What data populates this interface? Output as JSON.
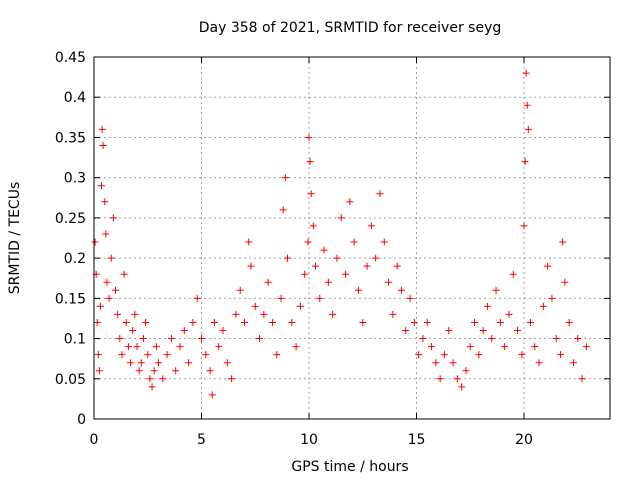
{
  "chart_data": {
    "type": "scatter",
    "title": "Day 358 of 2021, SRMTID for receiver seyg",
    "xlabel": "GPS time / hours",
    "ylabel": "SRMTID / TECUs",
    "xlim": [
      0,
      24
    ],
    "ylim": [
      0,
      0.45
    ],
    "xticks": [
      "0",
      "5",
      "10",
      "15",
      "20"
    ],
    "yticks": [
      "0",
      "0.05",
      "0.1",
      "0.15",
      "0.2",
      "0.25",
      "0.3",
      "0.35",
      "0.4",
      "0.45"
    ],
    "grid": true,
    "marker": "+",
    "color": "#ff0000",
    "series": [
      {
        "name": "SRMTID",
        "points": [
          [
            0.05,
            0.22
          ],
          [
            0.1,
            0.18
          ],
          [
            0.15,
            0.12
          ],
          [
            0.2,
            0.08
          ],
          [
            0.25,
            0.06
          ],
          [
            0.3,
            0.14
          ],
          [
            0.35,
            0.29
          ],
          [
            0.38,
            0.36
          ],
          [
            0.42,
            0.34
          ],
          [
            0.5,
            0.27
          ],
          [
            0.55,
            0.23
          ],
          [
            0.6,
            0.17
          ],
          [
            0.7,
            0.15
          ],
          [
            0.8,
            0.2
          ],
          [
            0.9,
            0.25
          ],
          [
            1.0,
            0.16
          ],
          [
            1.1,
            0.13
          ],
          [
            1.2,
            0.1
          ],
          [
            1.3,
            0.08
          ],
          [
            1.4,
            0.18
          ],
          [
            1.5,
            0.12
          ],
          [
            1.6,
            0.09
          ],
          [
            1.7,
            0.07
          ],
          [
            1.8,
            0.11
          ],
          [
            1.9,
            0.13
          ],
          [
            2.0,
            0.09
          ],
          [
            2.1,
            0.06
          ],
          [
            2.2,
            0.07
          ],
          [
            2.3,
            0.1
          ],
          [
            2.4,
            0.12
          ],
          [
            2.5,
            0.08
          ],
          [
            2.6,
            0.05
          ],
          [
            2.7,
            0.04
          ],
          [
            2.8,
            0.06
          ],
          [
            2.9,
            0.09
          ],
          [
            3.0,
            0.07
          ],
          [
            3.2,
            0.05
          ],
          [
            3.4,
            0.08
          ],
          [
            3.6,
            0.1
          ],
          [
            3.8,
            0.06
          ],
          [
            4.0,
            0.09
          ],
          [
            4.2,
            0.11
          ],
          [
            4.4,
            0.07
          ],
          [
            4.6,
            0.12
          ],
          [
            4.8,
            0.15
          ],
          [
            5.0,
            0.1
          ],
          [
            5.2,
            0.08
          ],
          [
            5.4,
            0.06
          ],
          [
            5.5,
            0.03
          ],
          [
            5.6,
            0.12
          ],
          [
            5.8,
            0.09
          ],
          [
            6.0,
            0.11
          ],
          [
            6.2,
            0.07
          ],
          [
            6.4,
            0.05
          ],
          [
            6.6,
            0.13
          ],
          [
            6.8,
            0.16
          ],
          [
            7.0,
            0.12
          ],
          [
            7.2,
            0.22
          ],
          [
            7.3,
            0.19
          ],
          [
            7.5,
            0.14
          ],
          [
            7.7,
            0.1
          ],
          [
            7.9,
            0.13
          ],
          [
            8.1,
            0.17
          ],
          [
            8.3,
            0.12
          ],
          [
            8.5,
            0.08
          ],
          [
            8.7,
            0.15
          ],
          [
            8.8,
            0.26
          ],
          [
            8.9,
            0.3
          ],
          [
            9.0,
            0.2
          ],
          [
            9.2,
            0.12
          ],
          [
            9.4,
            0.09
          ],
          [
            9.6,
            0.14
          ],
          [
            9.8,
            0.18
          ],
          [
            9.95,
            0.22
          ],
          [
            10.0,
            0.35
          ],
          [
            10.05,
            0.32
          ],
          [
            10.1,
            0.28
          ],
          [
            10.2,
            0.24
          ],
          [
            10.3,
            0.19
          ],
          [
            10.5,
            0.15
          ],
          [
            10.7,
            0.21
          ],
          [
            10.9,
            0.17
          ],
          [
            11.1,
            0.13
          ],
          [
            11.3,
            0.2
          ],
          [
            11.5,
            0.25
          ],
          [
            11.7,
            0.18
          ],
          [
            11.9,
            0.27
          ],
          [
            12.1,
            0.22
          ],
          [
            12.3,
            0.16
          ],
          [
            12.5,
            0.12
          ],
          [
            12.7,
            0.19
          ],
          [
            12.9,
            0.24
          ],
          [
            13.1,
            0.2
          ],
          [
            13.3,
            0.28
          ],
          [
            13.5,
            0.22
          ],
          [
            13.7,
            0.17
          ],
          [
            13.9,
            0.13
          ],
          [
            14.1,
            0.19
          ],
          [
            14.3,
            0.16
          ],
          [
            14.5,
            0.11
          ],
          [
            14.7,
            0.15
          ],
          [
            14.9,
            0.12
          ],
          [
            15.1,
            0.08
          ],
          [
            15.3,
            0.1
          ],
          [
            15.5,
            0.12
          ],
          [
            15.7,
            0.09
          ],
          [
            15.9,
            0.07
          ],
          [
            16.1,
            0.05
          ],
          [
            16.3,
            0.08
          ],
          [
            16.5,
            0.11
          ],
          [
            16.7,
            0.07
          ],
          [
            16.9,
            0.05
          ],
          [
            17.1,
            0.04
          ],
          [
            17.3,
            0.06
          ],
          [
            17.5,
            0.09
          ],
          [
            17.7,
            0.12
          ],
          [
            17.9,
            0.08
          ],
          [
            18.1,
            0.11
          ],
          [
            18.3,
            0.14
          ],
          [
            18.5,
            0.1
          ],
          [
            18.7,
            0.16
          ],
          [
            18.9,
            0.12
          ],
          [
            19.1,
            0.09
          ],
          [
            19.3,
            0.13
          ],
          [
            19.5,
            0.18
          ],
          [
            19.7,
            0.11
          ],
          [
            19.9,
            0.08
          ],
          [
            20.0,
            0.24
          ],
          [
            20.05,
            0.32
          ],
          [
            20.1,
            0.43
          ],
          [
            20.15,
            0.39
          ],
          [
            20.2,
            0.36
          ],
          [
            20.3,
            0.12
          ],
          [
            20.5,
            0.09
          ],
          [
            20.7,
            0.07
          ],
          [
            20.9,
            0.14
          ],
          [
            21.1,
            0.19
          ],
          [
            21.3,
            0.15
          ],
          [
            21.5,
            0.1
          ],
          [
            21.7,
            0.08
          ],
          [
            21.8,
            0.22
          ],
          [
            21.9,
            0.17
          ],
          [
            22.1,
            0.12
          ],
          [
            22.3,
            0.07
          ],
          [
            22.5,
            0.1
          ],
          [
            22.7,
            0.05
          ],
          [
            22.9,
            0.09
          ]
        ]
      }
    ]
  }
}
